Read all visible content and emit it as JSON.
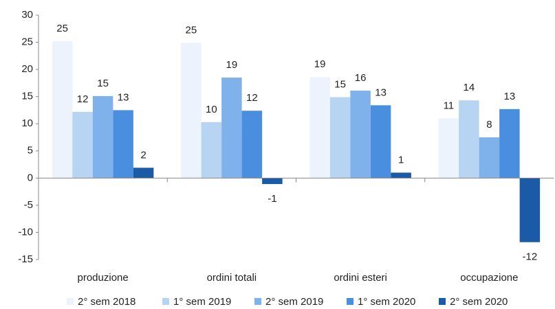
{
  "chart_data": {
    "type": "bar",
    "categories": [
      "produzione",
      "ordini totali",
      "ordini esteri",
      "occupazione"
    ],
    "series": [
      {
        "name": "2° sem 2018",
        "color": "#edf3fc",
        "values": [
          25.2,
          24.9,
          18.6,
          11.0
        ],
        "value_labels": [
          "25",
          "25",
          "19",
          "11"
        ]
      },
      {
        "name": "1° sem 2019",
        "color": "#b7d4f2",
        "values": [
          12.2,
          10.3,
          14.9,
          14.3
        ],
        "value_labels": [
          "12",
          "10",
          "15",
          "14"
        ]
      },
      {
        "name": "2° sem 2019",
        "color": "#7fb2ea",
        "values": [
          15.1,
          18.5,
          16.1,
          7.5
        ],
        "value_labels": [
          "15",
          "19",
          "16",
          "8"
        ]
      },
      {
        "name": "1° sem 2020",
        "color": "#4a8fdf",
        "values": [
          12.5,
          12.4,
          13.4,
          12.7
        ],
        "value_labels": [
          "13",
          "12",
          "13",
          "13"
        ]
      },
      {
        "name": "2° sem 2020",
        "color": "#1b5aa6",
        "values": [
          1.9,
          -1.1,
          1.0,
          -11.8
        ],
        "value_labels": [
          "2",
          "-1",
          "1",
          "-12"
        ]
      }
    ],
    "ylim": [
      -15,
      30
    ],
    "yticks": [
      -15,
      -10,
      -5,
      0,
      5,
      10,
      15,
      20,
      25,
      30
    ],
    "legend": "bottom"
  }
}
